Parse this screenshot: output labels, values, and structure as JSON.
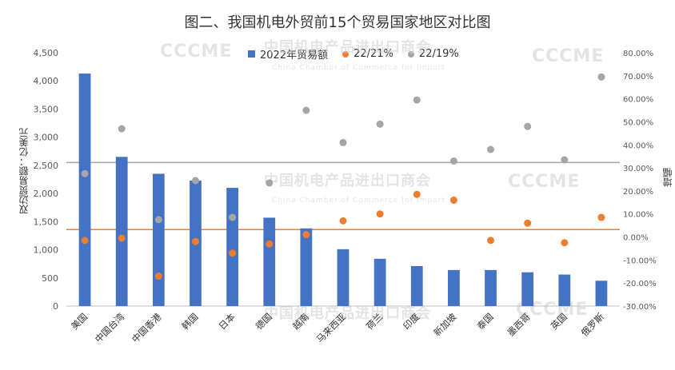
{
  "chart_data": {
    "type": "bar",
    "title": "图二、我国机电外贸前15个贸易国家地区对比图",
    "categories": [
      "美国",
      "中国台湾",
      "中国香港",
      "韩国",
      "日本",
      "德国",
      "越南",
      "马来西亚",
      "荷兰",
      "印度",
      "新加坡",
      "泰国",
      "墨西哥",
      "英国",
      "俄罗斯"
    ],
    "series": [
      {
        "name": "2022年贸易额",
        "axis": "left",
        "kind": "bar",
        "color": "#4472C4",
        "values": [
          4130,
          2650,
          2350,
          2230,
          2100,
          1570,
          1380,
          1010,
          840,
          710,
          640,
          640,
          600,
          560,
          450
        ]
      },
      {
        "name": "22/21%",
        "axis": "right",
        "kind": "scatter",
        "color": "#ED7D31",
        "values": [
          -1.5,
          -0.5,
          -17,
          -2,
          -7,
          -3,
          1,
          7,
          10,
          18.5,
          16,
          -1.5,
          6,
          -2.5,
          8.5
        ]
      },
      {
        "name": "22/19%",
        "axis": "right",
        "kind": "scatter",
        "color": "#A5A5A5",
        "values": [
          27.5,
          47,
          7.5,
          24.5,
          8.5,
          23.5,
          55,
          41,
          49,
          59.5,
          33,
          38,
          48,
          33.5,
          69.5
        ]
      }
    ],
    "ylabel_left": "双边贸易额：亿美元",
    "ylabel_right": "增幅",
    "ylim_left": [
      0,
      4500
    ],
    "yticks_left": [
      "0",
      "500",
      "1,000",
      "1,500",
      "2,000",
      "2,500",
      "3,000",
      "3,500",
      "4,000",
      "4,500"
    ],
    "ylim_right": [
      -30,
      80
    ],
    "yticks_right": [
      "-30.00%",
      "-20.00%",
      "-10.00%",
      "0.00%",
      "10.00%",
      "20.00%",
      "30.00%",
      "40.00%",
      "50.00%",
      "60.00%",
      "70.00%",
      "80.00%"
    ],
    "reference_lines": [
      {
        "color": "#ED7D31",
        "value_left": 1360
      },
      {
        "color": "#A5A5A5",
        "value_left": 2550
      }
    ],
    "legend_position": "top",
    "grid": false
  },
  "watermarks": [
    "中国机电产品进出口商会",
    "China Chamber of Commerce for Import",
    "and Export of Machinery and Electronic Products",
    "CCCME"
  ]
}
